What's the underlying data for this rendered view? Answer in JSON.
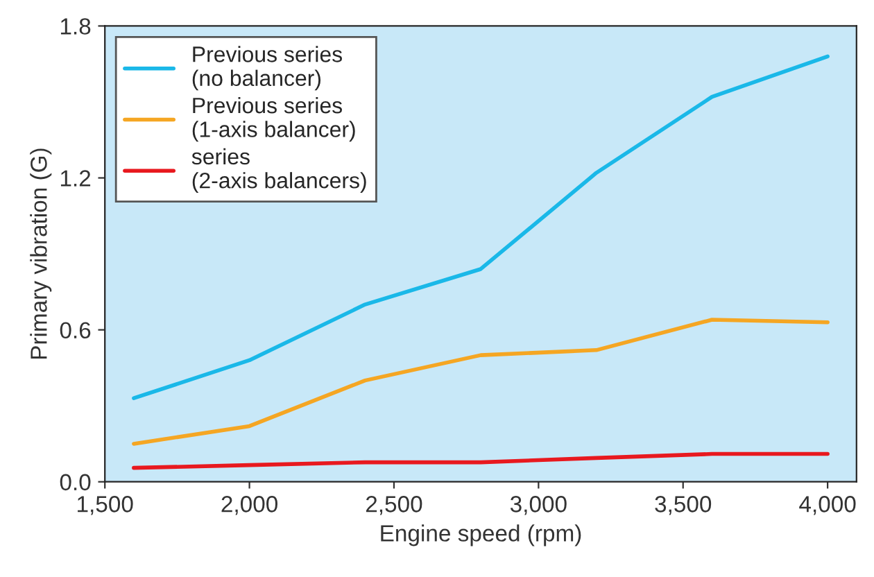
{
  "chart_data": {
    "type": "line",
    "xlabel": "Engine speed (rpm)",
    "ylabel": "Primary vibration (G)",
    "x": [
      1600,
      2000,
      2400,
      2800,
      3200,
      3600,
      4000
    ],
    "series": [
      {
        "name": "Previous series\n(no balancer)",
        "color": "#1ab8e8",
        "values": [
          0.33,
          0.48,
          0.7,
          0.84,
          1.22,
          1.52,
          1.68
        ]
      },
      {
        "name": "Previous series\n(1-axis balancer)",
        "color": "#f5a623",
        "values": [
          0.15,
          0.22,
          0.4,
          0.5,
          0.52,
          0.64,
          0.63
        ]
      },
      {
        "name": "series\n(2-axis balancers)",
        "color": "#e8191f",
        "values": [
          0.055,
          0.066,
          0.077,
          0.077,
          0.094,
          0.11,
          0.11
        ]
      }
    ],
    "xlim": [
      1500,
      4100
    ],
    "xticks": [
      {
        "value": 1500,
        "label": "1,500"
      },
      {
        "value": 2000,
        "label": "2,000"
      },
      {
        "value": 2500,
        "label": "2,500"
      },
      {
        "value": 3000,
        "label": "3,000"
      },
      {
        "value": 3500,
        "label": "3,500"
      },
      {
        "value": 4000,
        "label": "4,000"
      }
    ],
    "ylim": [
      0,
      1.8
    ],
    "yticks": [
      {
        "value": 0,
        "label": "0.0"
      },
      {
        "value": 0.6,
        "label": "0.6"
      },
      {
        "value": 1.2,
        "label": "1.2"
      },
      {
        "value": 1.8,
        "label": "1.8"
      }
    ],
    "grid": false,
    "legend": "top left",
    "marker": "none",
    "line_style": "solid"
  }
}
